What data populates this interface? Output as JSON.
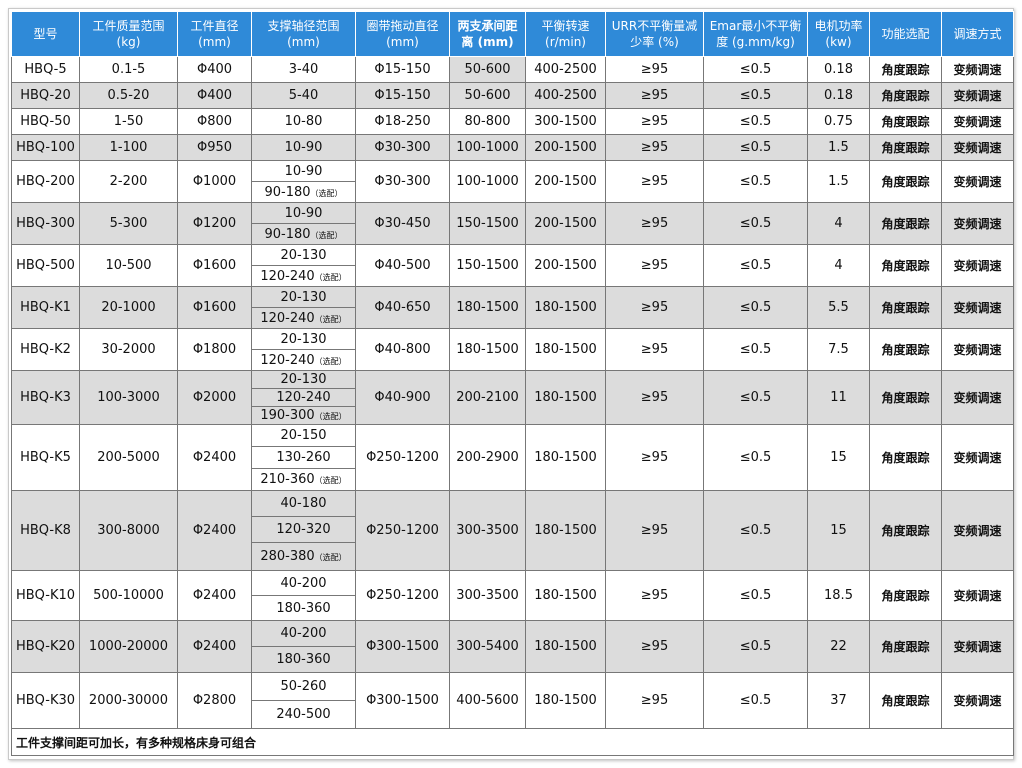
{
  "headers": [
    {
      "l1": "型号",
      "l2": ""
    },
    {
      "l1": "工件质量范围",
      "l2": "(kg)"
    },
    {
      "l1": "工件直径",
      "l2": "(mm)"
    },
    {
      "l1": "支撑轴径范围",
      "l2": "(mm)"
    },
    {
      "l1": "圈带拖动直径",
      "l2": "(mm)"
    },
    {
      "l1": "两支承间距",
      "l2": "离 (mm)"
    },
    {
      "l1": "平衡转速",
      "l2": "(r/min)"
    },
    {
      "l1": "URR不平衡量减",
      "l2": "少率 (%)"
    },
    {
      "l1": "Emar最小不平衡",
      "l2": "度 (g.mm/kg)"
    },
    {
      "l1": "电机功率",
      "l2": "(kw)"
    },
    {
      "l1": "功能选配",
      "l2": ""
    },
    {
      "l1": "调速方式",
      "l2": ""
    }
  ],
  "opt_label": "（选配）",
  "rows": [
    {
      "model": "HBQ-5",
      "mass": "0.1-5",
      "dia": "Φ400",
      "shafts": [
        {
          "v": "3-40",
          "opt": false
        }
      ],
      "belt": "Φ15-150",
      "span": "50-600",
      "speed": "400-2500",
      "urr": "≥95",
      "emar": "≤0.5",
      "power": "0.18",
      "func": "角度跟踪",
      "mode": "变频调速"
    },
    {
      "model": "HBQ-20",
      "mass": "0.5-20",
      "dia": "Φ400",
      "shafts": [
        {
          "v": "5-40",
          "opt": false
        }
      ],
      "belt": "Φ15-150",
      "span": "50-600",
      "speed": "400-2500",
      "urr": "≥95",
      "emar": "≤0.5",
      "power": "0.18",
      "func": "角度跟踪",
      "mode": "变频调速"
    },
    {
      "model": "HBQ-50",
      "mass": "1-50",
      "dia": "Φ800",
      "shafts": [
        {
          "v": "10-80",
          "opt": false
        }
      ],
      "belt": "Φ18-250",
      "span": "80-800",
      "speed": "300-1500",
      "urr": "≥95",
      "emar": "≤0.5",
      "power": "0.75",
      "func": "角度跟踪",
      "mode": "变频调速"
    },
    {
      "model": "HBQ-100",
      "mass": "1-100",
      "dia": "Φ950",
      "shafts": [
        {
          "v": "10-90",
          "opt": false
        }
      ],
      "belt": "Φ30-300",
      "span": "100-1000",
      "speed": "200-1500",
      "urr": "≥95",
      "emar": "≤0.5",
      "power": "1.5",
      "func": "角度跟踪",
      "mode": "变频调速"
    },
    {
      "model": "HBQ-200",
      "mass": "2-200",
      "dia": "Φ1000",
      "shafts": [
        {
          "v": "10-90",
          "opt": false
        },
        {
          "v": "90-180",
          "opt": true
        }
      ],
      "belt": "Φ30-300",
      "span": "100-1000",
      "speed": "200-1500",
      "urr": "≥95",
      "emar": "≤0.5",
      "power": "1.5",
      "func": "角度跟踪",
      "mode": "变频调速"
    },
    {
      "model": "HBQ-300",
      "mass": "5-300",
      "dia": "Φ1200",
      "shafts": [
        {
          "v": "10-90",
          "opt": false
        },
        {
          "v": "90-180",
          "opt": true
        }
      ],
      "belt": "Φ30-450",
      "span": "150-1500",
      "speed": "200-1500",
      "urr": "≥95",
      "emar": "≤0.5",
      "power": "4",
      "func": "角度跟踪",
      "mode": "变频调速"
    },
    {
      "model": "HBQ-500",
      "mass": "10-500",
      "dia": "Φ1600",
      "shafts": [
        {
          "v": "20-130",
          "opt": false
        },
        {
          "v": "120-240",
          "opt": true
        }
      ],
      "belt": "Φ40-500",
      "span": "150-1500",
      "speed": "200-1500",
      "urr": "≥95",
      "emar": "≤0.5",
      "power": "4",
      "func": "角度跟踪",
      "mode": "变频调速"
    },
    {
      "model": "HBQ-K1",
      "mass": "20-1000",
      "dia": "Φ1600",
      "shafts": [
        {
          "v": "20-130",
          "opt": false
        },
        {
          "v": "120-240",
          "opt": true
        }
      ],
      "belt": "Φ40-650",
      "span": "180-1500",
      "speed": "180-1500",
      "urr": "≥95",
      "emar": "≤0.5",
      "power": "5.5",
      "func": "角度跟踪",
      "mode": "变频调速"
    },
    {
      "model": "HBQ-K2",
      "mass": "30-2000",
      "dia": "Φ1800",
      "shafts": [
        {
          "v": "20-130",
          "opt": false
        },
        {
          "v": "120-240",
          "opt": true
        }
      ],
      "belt": "Φ40-800",
      "span": "180-1500",
      "speed": "180-1500",
      "urr": "≥95",
      "emar": "≤0.5",
      "power": "7.5",
      "func": "角度跟踪",
      "mode": "变频调速"
    },
    {
      "model": "HBQ-K3",
      "mass": "100-3000",
      "dia": "Φ2000",
      "shafts": [
        {
          "v": "20-130",
          "opt": false
        },
        {
          "v": "120-240",
          "opt": false
        },
        {
          "v": "190-300",
          "opt": true
        }
      ],
      "belt": "Φ40-900",
      "span": "200-2100",
      "speed": "180-1500",
      "urr": "≥95",
      "emar": "≤0.5",
      "power": "11",
      "func": "角度跟踪",
      "mode": "变频调速"
    },
    {
      "model": "HBQ-K5",
      "mass": "200-5000",
      "dia": "Φ2400",
      "shafts": [
        {
          "v": "20-150",
          "opt": false
        },
        {
          "v": "130-260",
          "opt": false
        },
        {
          "v": "210-360",
          "opt": true
        }
      ],
      "belt": "Φ250-1200",
      "span": "200-2900",
      "speed": "180-1500",
      "urr": "≥95",
      "emar": "≤0.5",
      "power": "15",
      "func": "角度跟踪",
      "mode": "变频调速"
    },
    {
      "model": "HBQ-K8",
      "mass": "300-8000",
      "dia": "Φ2400",
      "shafts": [
        {
          "v": "40-180",
          "opt": false
        },
        {
          "v": "120-320",
          "opt": false
        },
        {
          "v": "280-380",
          "opt": true
        }
      ],
      "belt": "Φ250-1200",
      "span": "300-3500",
      "speed": "180-1500",
      "urr": "≥95",
      "emar": "≤0.5",
      "power": "15",
      "func": "角度跟踪",
      "mode": "变频调速"
    },
    {
      "model": "HBQ-K10",
      "mass": "500-10000",
      "dia": "Φ2400",
      "shafts": [
        {
          "v": "40-200",
          "opt": false
        },
        {
          "v": "180-360",
          "opt": false
        }
      ],
      "belt": "Φ250-1200",
      "span": "300-3500",
      "speed": "180-1500",
      "urr": "≥95",
      "emar": "≤0.5",
      "power": "18.5",
      "func": "角度跟踪",
      "mode": "变频调速"
    },
    {
      "model": "HBQ-K20",
      "mass": "1000-20000",
      "dia": "Φ2400",
      "shafts": [
        {
          "v": "40-200",
          "opt": false
        },
        {
          "v": "180-360",
          "opt": false
        }
      ],
      "belt": "Φ300-1500",
      "span": "300-5400",
      "speed": "180-1500",
      "urr": "≥95",
      "emar": "≤0.5",
      "power": "22",
      "func": "角度跟踪",
      "mode": "变频调速"
    },
    {
      "model": "HBQ-K30",
      "mass": "2000-30000",
      "dia": "Φ2800",
      "shafts": [
        {
          "v": "50-260",
          "opt": false
        },
        {
          "v": "240-500",
          "opt": false
        }
      ],
      "belt": "Φ300-1500",
      "span": "400-5600",
      "speed": "180-1500",
      "urr": "≥95",
      "emar": "≤0.5",
      "power": "37",
      "func": "角度跟踪",
      "mode": "变频调速"
    }
  ],
  "note": "工件支撑间距可加长，有多种规格床身可组合"
}
